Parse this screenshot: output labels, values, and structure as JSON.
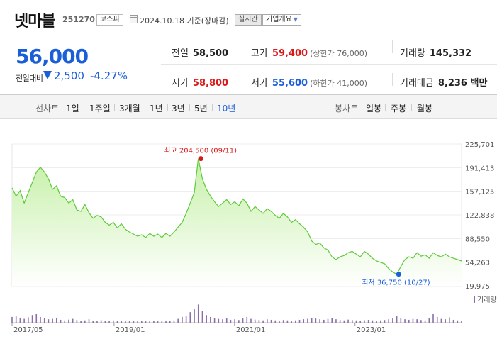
{
  "header": {
    "name": "넷마블",
    "code": "251270",
    "market": "코스피",
    "base_date": "2024.10.18 기준(장마감)",
    "realtime_label": "실시간",
    "company_label": "기업개요"
  },
  "summary": {
    "current_price": "56,000",
    "change_label": "전일대비",
    "change_value": "2,500",
    "change_rate": "-4.27%",
    "change_direction": "down",
    "prev_close": {
      "label": "전일",
      "value": "58,500"
    },
    "high": {
      "label": "고가",
      "value": "59,400",
      "limit": "(상한가 76,000)"
    },
    "volume": {
      "label": "거래량",
      "value": "145,332"
    },
    "open": {
      "label": "시가",
      "value": "58,800"
    },
    "low": {
      "label": "저가",
      "value": "55,600",
      "limit": "(하한가 41,000)"
    },
    "amount": {
      "label": "거래대금",
      "value": "8,236 백만"
    }
  },
  "tabs": {
    "line_label": "선차트",
    "line_items": [
      "1일",
      "1주일",
      "3개월",
      "1년",
      "3년",
      "5년",
      "10년"
    ],
    "active": "10년",
    "candle_label": "봉차트",
    "candle_items": [
      "일봉",
      "주봉",
      "월봉"
    ]
  },
  "colors": {
    "up": "#d91a1a",
    "down": "#1a5fd7",
    "line": "#5fc93a",
    "fill_top": "#c6f0a8",
    "volume": "#8a6fa8"
  },
  "chart_data": {
    "type": "area",
    "y_ticks": [
      "225,701",
      "191,413",
      "157,125",
      "122,838",
      "88,550",
      "54,263",
      "19,975"
    ],
    "ylim": [
      19975,
      225701
    ],
    "x_ticks": [
      "2017/05",
      "2019/01",
      "2021/01",
      "2023/01"
    ],
    "x_ticks_t": [
      0,
      0.227,
      0.495,
      0.763
    ],
    "max_annotation": "최고 204,500 (09/11)",
    "min_annotation": "최저 36,750 (10/27)",
    "max_point": {
      "t": 0.42,
      "value": 204500
    },
    "min_point": {
      "t": 0.86,
      "value": 36750
    },
    "volume_label": "거래량",
    "series": [
      {
        "values": [
          162000,
          150000,
          158000,
          140000,
          155000,
          170000,
          185000,
          192000,
          185000,
          175000,
          160000,
          165000,
          150000,
          148000,
          140000,
          145000,
          130000,
          128000,
          138000,
          126000,
          118000,
          122000,
          120000,
          112000,
          108000,
          112000,
          104000,
          110000,
          102000,
          98000,
          95000,
          92000,
          94000,
          90000,
          96000,
          92000,
          95000,
          90000,
          96000,
          92000,
          98000,
          105000,
          112000,
          125000,
          140000,
          155000,
          204500,
          175000,
          160000,
          150000,
          142000,
          135000,
          140000,
          145000,
          138000,
          142000,
          136000,
          146000,
          140000,
          128000,
          135000,
          130000,
          125000,
          132000,
          128000,
          122000,
          118000,
          125000,
          120000,
          112000,
          116000,
          110000,
          105000,
          98000,
          85000,
          80000,
          82000,
          75000,
          72000,
          62000,
          58000,
          62000,
          64000,
          68000,
          70000,
          66000,
          62000,
          70000,
          66000,
          60000,
          56000,
          54000,
          52000,
          45000,
          40000,
          36750,
          48000,
          58000,
          62000,
          60000,
          68000,
          63000,
          65000,
          60000,
          68000,
          64000,
          62000,
          66000,
          62000,
          60000,
          58000,
          56000
        ]
      }
    ],
    "volume": [
      0.3,
      0.35,
      0.25,
      0.2,
      0.28,
      0.4,
      0.45,
      0.3,
      0.22,
      0.18,
      0.2,
      0.25,
      0.15,
      0.12,
      0.16,
      0.2,
      0.14,
      0.1,
      0.12,
      0.18,
      0.11,
      0.09,
      0.13,
      0.1,
      0.08,
      0.12,
      0.09,
      0.1,
      0.08,
      0.07,
      0.09,
      0.08,
      0.1,
      0.07,
      0.08,
      0.09,
      0.07,
      0.1,
      0.08,
      0.09,
      0.12,
      0.2,
      0.3,
      0.35,
      0.55,
      0.7,
      0.95,
      0.6,
      0.4,
      0.3,
      0.25,
      0.2,
      0.18,
      0.22,
      0.15,
      0.18,
      0.14,
      0.22,
      0.3,
      0.2,
      0.16,
      0.14,
      0.12,
      0.18,
      0.15,
      0.12,
      0.1,
      0.14,
      0.12,
      0.1,
      0.12,
      0.15,
      0.18,
      0.2,
      0.25,
      0.22,
      0.18,
      0.15,
      0.2,
      0.25,
      0.18,
      0.14,
      0.12,
      0.16,
      0.14,
      0.12,
      0.1,
      0.13,
      0.15,
      0.12,
      0.1,
      0.12,
      0.14,
      0.18,
      0.22,
      0.35,
      0.25,
      0.18,
      0.15,
      0.2,
      0.18,
      0.14,
      0.12,
      0.22,
      0.45,
      0.3,
      0.2,
      0.18,
      0.28,
      0.15,
      0.12,
      0.1
    ]
  }
}
